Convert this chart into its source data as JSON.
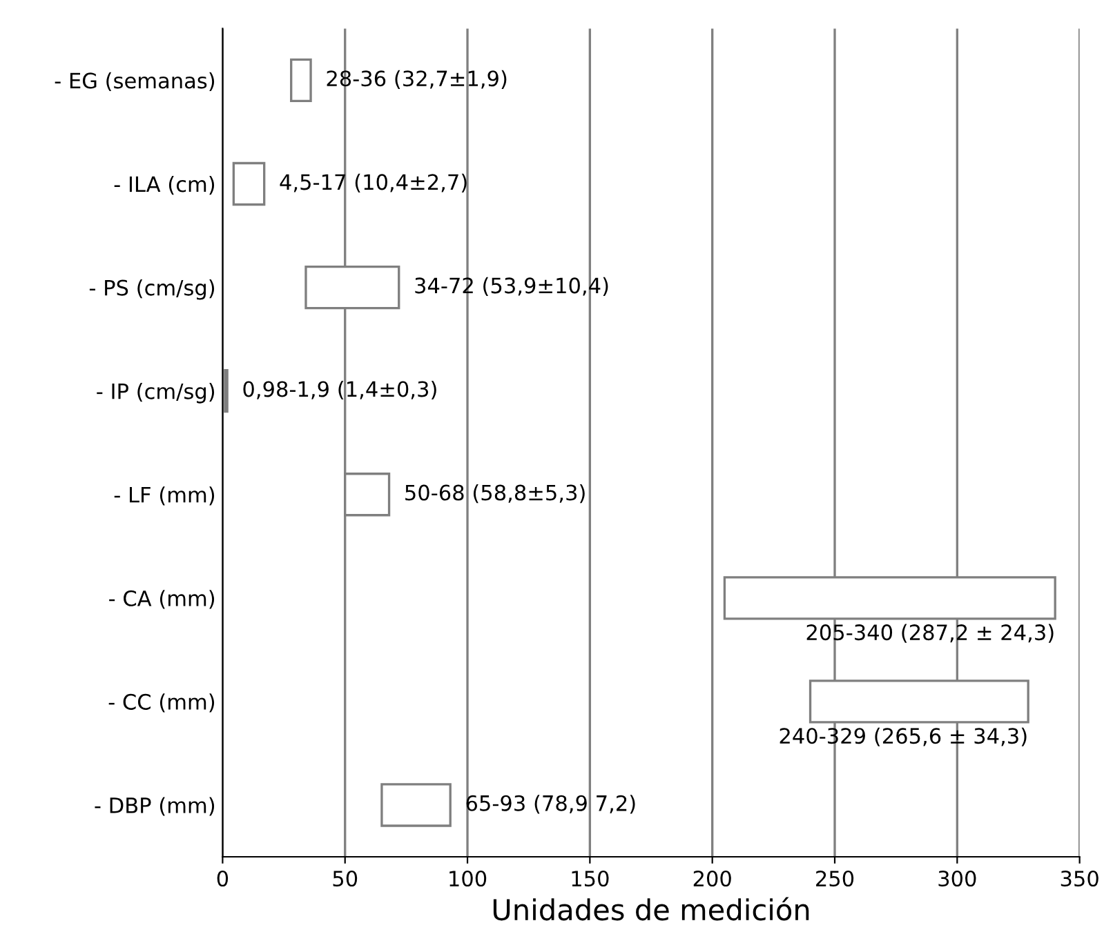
{
  "chart_data": {
    "type": "bar",
    "orientation": "horizontal",
    "xlabel": "Unidades de medición",
    "categories": [
      "- EG (semanas)",
      "- ILA (cm)",
      "- PS (cm/sg)",
      "- IP (cm/sg)",
      "- LF (mm)",
      "- CA (mm)",
      "- CC (mm)",
      "- DBP (mm)"
    ],
    "base": [
      28,
      4.5,
      34,
      0.98,
      50,
      205,
      240,
      65
    ],
    "values": [
      8,
      12.5,
      38,
      0.92,
      18,
      135,
      89,
      28
    ],
    "value_labels": [
      "28-36 (32,7±1,9)",
      "4,5-17 (10,4±2,7)",
      "34-72 (53,9±10,4)",
      "0,98-1,9 (1,4±0,3)",
      "50-68 (58,8±5,3)",
      "205-340 (287,2 ± 24,3)",
      "240-329 (265,6 ± 34,3)",
      "65-93 (78,9 7,2)"
    ],
    "color": "#ffffff",
    "xlim": [
      0,
      350
    ],
    "xticks": [
      0,
      50,
      100,
      150,
      200,
      250,
      300,
      350
    ],
    "grid": "x"
  }
}
